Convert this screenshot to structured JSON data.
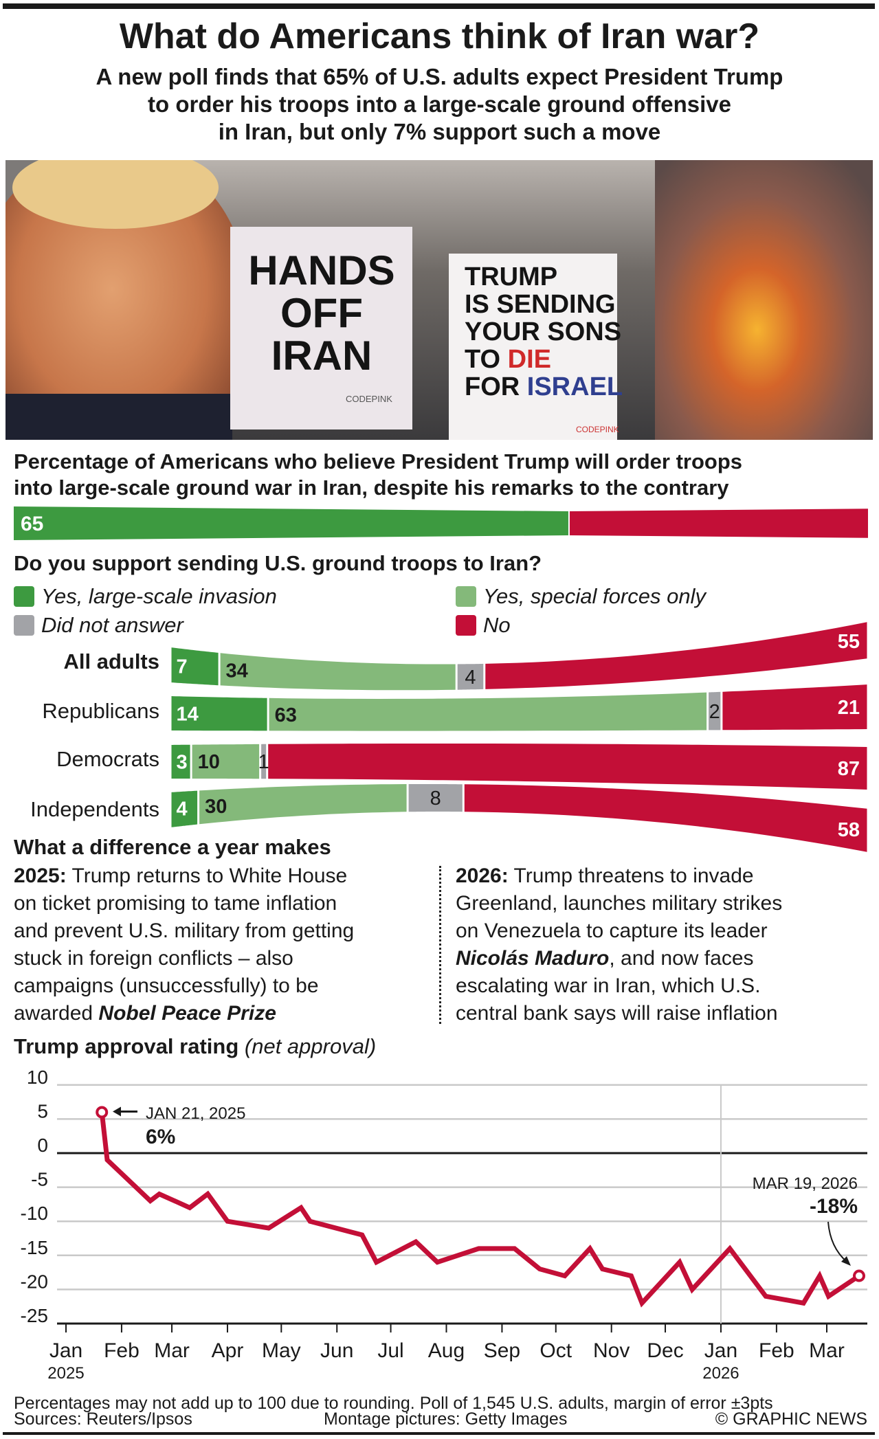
{
  "header": {
    "title": "What do Americans think of Iran war?",
    "subtitle_lines": [
      "A new poll finds that 65% of U.S. adults expect President Trump",
      "to order his troops into a large-scale ground offensive",
      "in Iran, but only 7% support such a move"
    ]
  },
  "photo": {
    "sign_left": [
      "HANDS",
      "OFF",
      "IRAN"
    ],
    "sign_left_brand": "CODEPINK",
    "sign_right": [
      "TRUMP",
      "IS SENDING",
      "YOUR SONS",
      "TO",
      "DIE",
      "FOR",
      "ISRAEL"
    ],
    "sign_right_brand": "CODEPINK"
  },
  "expect": {
    "question_lines": [
      "Percentage of Americans who believe President Trump will order troops",
      "into large-scale ground war in Iran, despite his remarks to the contrary"
    ],
    "value": 65,
    "label": "65",
    "colors": {
      "yes": "#3d9a40",
      "rest": "#c30f37"
    }
  },
  "support": {
    "question": "Do you support sending U.S. ground troops to Iran?",
    "legend": [
      {
        "label": "Yes, large-scale invasion",
        "color": "#3d9a40"
      },
      {
        "label": "Yes, special forces only",
        "color": "#84b97a"
      },
      {
        "label": "Did not answer",
        "color": "#a2a3a7"
      },
      {
        "label": "No",
        "color": "#c30f37"
      }
    ],
    "rows": [
      {
        "group": "All adults",
        "values": [
          7,
          34,
          4,
          55
        ],
        "labels": [
          "7",
          "34",
          "4",
          "55"
        ]
      },
      {
        "group": "Republicans",
        "values": [
          14,
          63,
          2,
          21
        ],
        "labels": [
          "14",
          "63",
          "2",
          "21"
        ]
      },
      {
        "group": "Democrats",
        "values": [
          3,
          10,
          1,
          87
        ],
        "labels": [
          "3",
          "10",
          "1",
          "87"
        ]
      },
      {
        "group": "Independents",
        "values": [
          4,
          30,
          8,
          58
        ],
        "labels": [
          "4",
          "30",
          "8",
          "58"
        ]
      }
    ]
  },
  "year": {
    "heading": "What a difference a year makes",
    "left": {
      "lead": "2025:",
      "l1": " Trump returns to White House",
      "l2": "on ticket promising to tame inflation",
      "l3": "and prevent U.S. military from getting",
      "l4": "stuck in foreign conflicts – also",
      "l5": "campaigns (unsuccessfully) to be",
      "l6a": "awarded ",
      "l6b": "Nobel Peace Prize"
    },
    "right": {
      "lead": "2026:",
      "l1": " Trump threatens to invade",
      "l2": "Greenland, launches military strikes",
      "l3": "on Venezuela to capture its leader",
      "l4a": "Nicolás Maduro",
      "l4b": ", and now faces",
      "l5": "escalating war in Iran, which U.S.",
      "l6": "central bank says will raise inflation"
    }
  },
  "chart_data": {
    "type": "line",
    "title": "Trump approval rating",
    "title_note": "(net approval)",
    "ylim": [
      -25,
      10
    ],
    "yticks": [
      10,
      5,
      0,
      -5,
      -10,
      -15,
      -20,
      -25
    ],
    "ytick_labels": [
      "10",
      "5",
      "0",
      "-5",
      "-10",
      "-15",
      "-20",
      "-25"
    ],
    "xlim": [
      "2025-01-01",
      "2026-03-31"
    ],
    "xtick_labels": [
      "Jan",
      "Feb",
      "Mar",
      "Apr",
      "May",
      "Jun",
      "Jul",
      "Aug",
      "Sep",
      "Oct",
      "Nov",
      "Dec",
      "Jan",
      "Feb",
      "Mar"
    ],
    "xtick_dates": [
      "2025-01-01",
      "2025-02-01",
      "2025-03-01",
      "2025-04-01",
      "2025-05-01",
      "2025-06-01",
      "2025-07-01",
      "2025-08-01",
      "2025-09-01",
      "2025-10-01",
      "2025-11-01",
      "2025-12-01",
      "2026-01-01",
      "2026-02-01",
      "2026-03-01"
    ],
    "year_labels": [
      "2025",
      "2026"
    ],
    "grid": true,
    "color": "#c30f37",
    "x": [
      "2025-01-21",
      "2025-01-24",
      "2025-02-17",
      "2025-02-22",
      "2025-03-11",
      "2025-03-21",
      "2025-04-01",
      "2025-04-24",
      "2025-05-12",
      "2025-05-17",
      "2025-06-15",
      "2025-06-23",
      "2025-07-15",
      "2025-07-27",
      "2025-08-19",
      "2025-09-08",
      "2025-09-22",
      "2025-10-06",
      "2025-10-20",
      "2025-10-27",
      "2025-11-12",
      "2025-11-18",
      "2025-12-09",
      "2025-12-16",
      "2026-01-06",
      "2026-01-26",
      "2026-02-16",
      "2026-02-25",
      "2026-03-02",
      "2026-03-19"
    ],
    "y": [
      6,
      -1,
      -7,
      -6,
      -8,
      -6,
      -10,
      -11,
      -8,
      -10,
      -12,
      -16,
      -13,
      -16,
      -14,
      -14,
      -17,
      -18,
      -14,
      -17,
      -18,
      -22,
      -16,
      -20,
      -14,
      -21,
      -22,
      -18,
      -21,
      -18
    ],
    "annotations": [
      {
        "date_label": "JAN 21, 2025",
        "value_label": "6%"
      },
      {
        "date_label": "MAR 19, 2026",
        "value_label": "-18%"
      }
    ]
  },
  "footer": {
    "note": "Percentages may not add up to 100 due to rounding. Poll of 1,545 U.S. adults, margin of error ±3pts",
    "sources": "Sources: Reuters/Ipsos",
    "pictures": "Montage pictures: Getty Images",
    "credit": "© GRAPHIC NEWS"
  }
}
